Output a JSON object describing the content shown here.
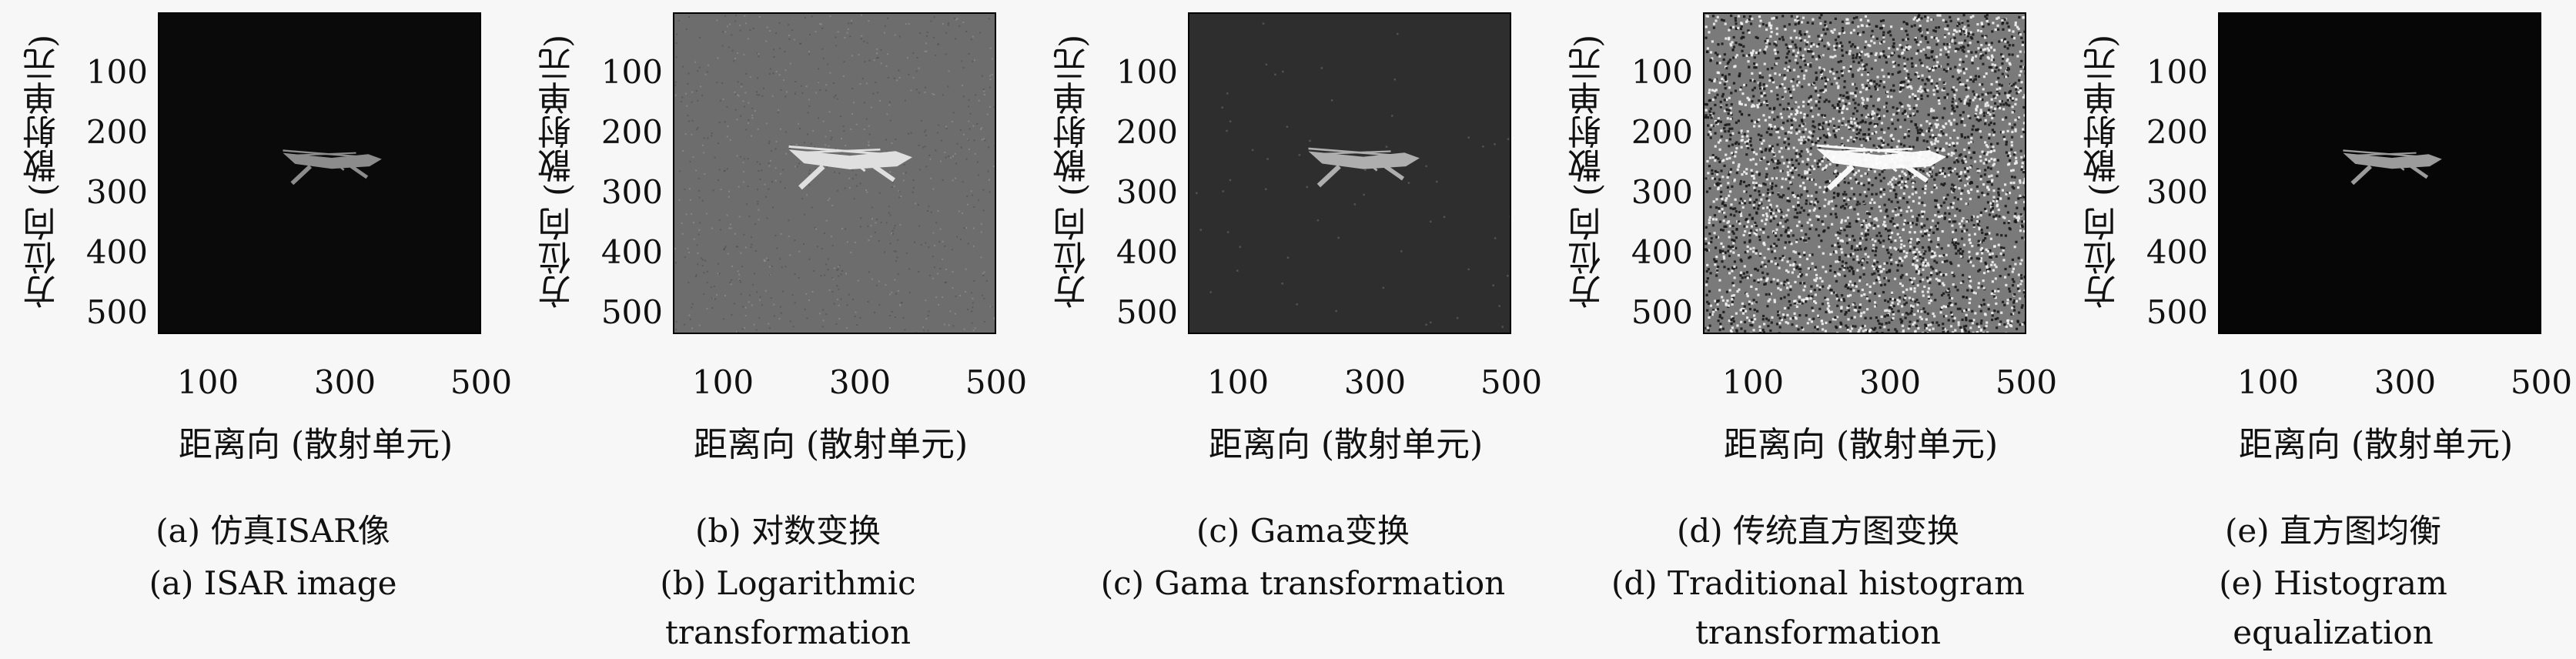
{
  "axes": {
    "ylabel": "方位向 (散射单元)",
    "xlabel": "距离向 (散射单元)",
    "yticks": [
      "100",
      "200",
      "300",
      "400",
      "500"
    ],
    "xticks": [
      "100",
      "300",
      "500"
    ]
  },
  "panels": [
    {
      "id": "a",
      "caption_zh": "(a) 仿真ISAR像",
      "caption_en_line1": "(a) ISAR image",
      "caption_en_line2": "",
      "bg_color": "#0a0a0a",
      "noise": "none",
      "target_brightness": 0.35,
      "target_scale": 0.8
    },
    {
      "id": "b",
      "caption_zh": "(b) 对数变换",
      "caption_en_line1": "(b) Logarithmic",
      "caption_en_line2": "transformation",
      "bg_color": "#6d6d6d",
      "noise": "light",
      "target_brightness": 0.85,
      "target_scale": 1.0
    },
    {
      "id": "c",
      "caption_zh": "(c) Gama变换",
      "caption_en_line1": "(c) Gama transformation",
      "caption_en_line2": "",
      "bg_color": "#2e2e2e",
      "noise": "sparse",
      "target_brightness": 0.55,
      "target_scale": 0.9
    },
    {
      "id": "d",
      "caption_zh": "(d) 传统直方图变换",
      "caption_en_line1": "(d) Traditional histogram",
      "caption_en_line2": "transformation",
      "bg_color": "#7a7a7a",
      "noise": "heavy",
      "target_brightness": 1.0,
      "target_scale": 1.05
    },
    {
      "id": "e",
      "caption_zh": "(e) 直方图均衡",
      "caption_en_line1": "(e) Histogram",
      "caption_en_line2": "equalization",
      "bg_color": "#060606",
      "noise": "none",
      "target_brightness": 0.45,
      "target_scale": 0.8
    }
  ]
}
